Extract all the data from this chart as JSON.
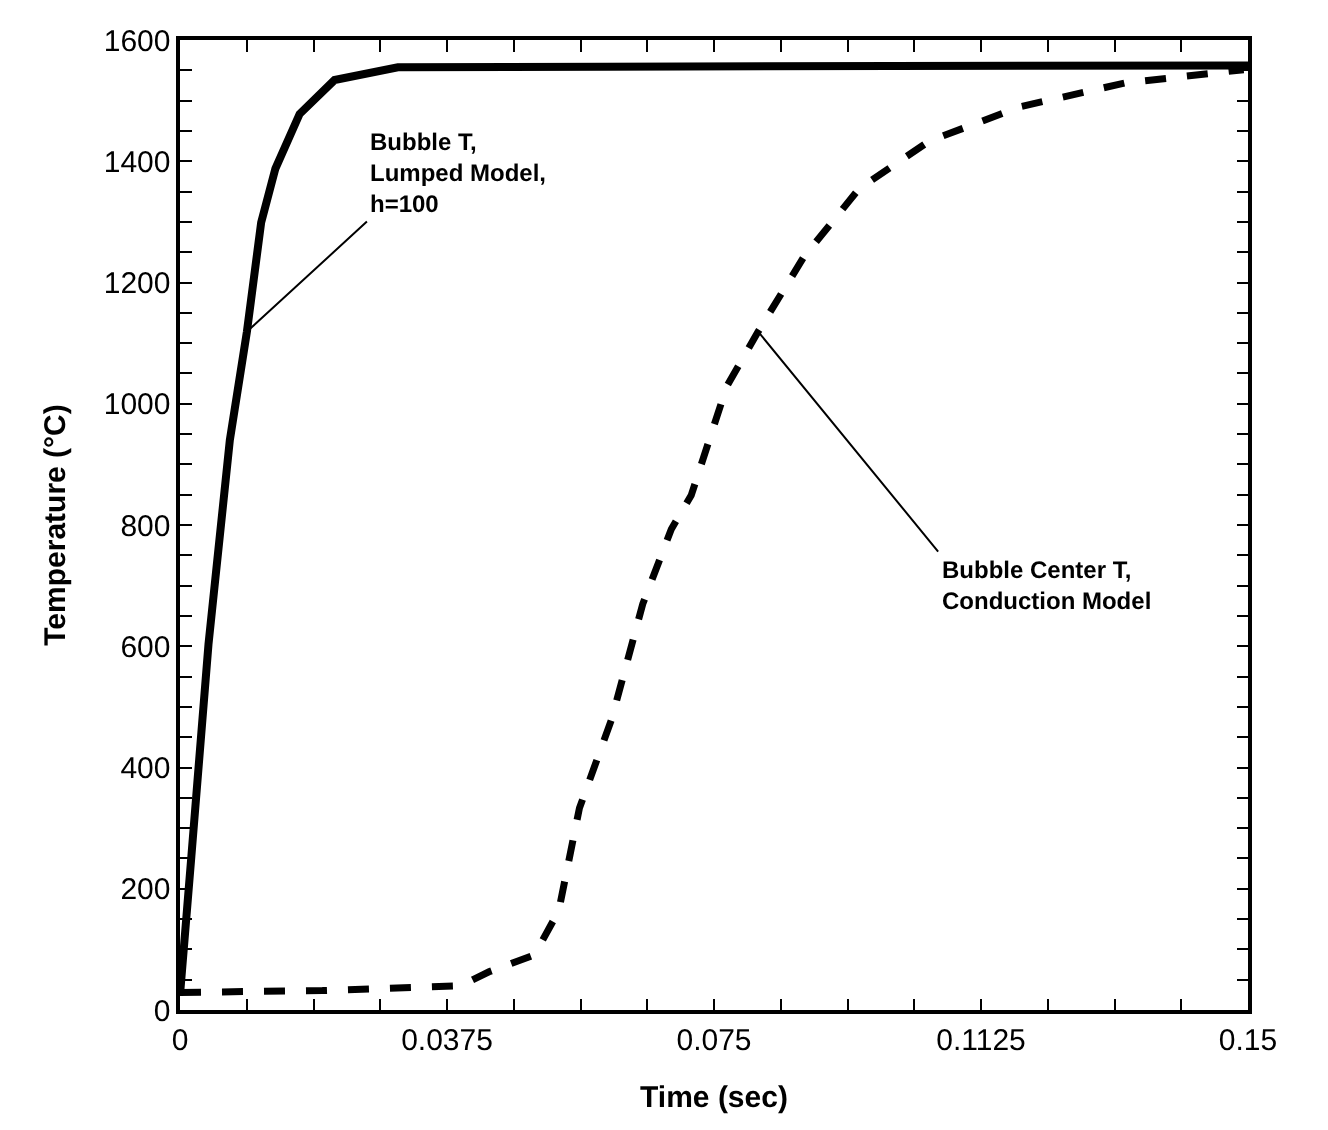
{
  "chart_data": {
    "type": "line",
    "xlabel": "Time (sec)",
    "ylabel": "Temperature (°C)",
    "series": [
      {
        "color": "#000000",
        "line_style": "solid",
        "x": [
          0,
          0.0016,
          0.004,
          0.007,
          0.0094,
          0.0114,
          0.0134,
          0.0168,
          0.0217,
          0.0306,
          0.06,
          0.1,
          0.15
        ],
        "values": [
          25,
          254,
          603,
          940,
          1119,
          1299,
          1388,
          1478,
          1534,
          1555,
          1556,
          1557,
          1558
        ]
      },
      {
        "color": "#000000",
        "line_style": "dashed",
        "x": [
          0,
          0.02,
          0.0394,
          0.0434,
          0.0498,
          0.0532,
          0.0561,
          0.0606,
          0.065,
          0.069,
          0.0718,
          0.0768,
          0.0812,
          0.0876,
          0.0954,
          0.1052,
          0.118,
          0.1327,
          0.1494
        ],
        "values": [
          29,
          32,
          40,
          63,
          91,
          164,
          333,
          479,
          670,
          793,
          849,
          1029,
          1119,
          1242,
          1355,
          1433,
          1490,
          1529,
          1551
        ]
      }
    ],
    "annotations": [
      {
        "text": "Bubble T,\nLumped Model,\nh=100",
        "x": 0.0094,
        "y": 1119
      },
      {
        "text": "Bubble Center T,\nConduction Model",
        "x": 0.0812,
        "y": 1119
      }
    ],
    "xlim": [
      0,
      0.15
    ],
    "xticks": [
      0,
      {
        "value": 0.009375,
        "label": null
      },
      {
        "value": 0.01875,
        "label": null
      },
      {
        "value": 0.028125,
        "label": null
      },
      0.0375,
      {
        "value": 0.046875,
        "label": null
      },
      {
        "value": 0.05625,
        "label": null
      },
      {
        "value": 0.065625,
        "label": null
      },
      0.075,
      {
        "value": 0.084375,
        "label": null
      },
      {
        "value": 0.09375,
        "label": null
      },
      {
        "value": 0.103125,
        "label": null
      },
      0.1125,
      {
        "value": 0.121875,
        "label": null
      },
      {
        "value": 0.13125,
        "label": null
      },
      {
        "value": 0.140625,
        "label": null
      },
      0.15
    ],
    "ylim": [
      0,
      1600
    ],
    "yticks": [
      0,
      {
        "value": 50,
        "label": null
      },
      {
        "value": 100,
        "label": null
      },
      {
        "value": 150,
        "label": null
      },
      200,
      {
        "value": 250,
        "label": null
      },
      {
        "value": 300,
        "label": null
      },
      {
        "value": 350,
        "label": null
      },
      400,
      {
        "value": 450,
        "label": null
      },
      {
        "value": 500,
        "label": null
      },
      {
        "value": 550,
        "label": null
      },
      600,
      {
        "value": 650,
        "label": null
      },
      {
        "value": 700,
        "label": null
      },
      {
        "value": 750,
        "label": null
      },
      800,
      {
        "value": 850,
        "label": null
      },
      {
        "value": 900,
        "label": null
      },
      {
        "value": 950,
        "label": null
      },
      1000,
      {
        "value": 1050,
        "label": null
      },
      {
        "value": 1100,
        "label": null
      },
      {
        "value": 1150,
        "label": null
      },
      1200,
      {
        "value": 1250,
        "label": null
      },
      {
        "value": 1300,
        "label": null
      },
      {
        "value": 1350,
        "label": null
      },
      1400,
      {
        "value": 1450,
        "label": null
      },
      {
        "value": 1500,
        "label": null
      },
      {
        "value": 1550,
        "label": null
      },
      1600
    ],
    "marker": "none"
  }
}
